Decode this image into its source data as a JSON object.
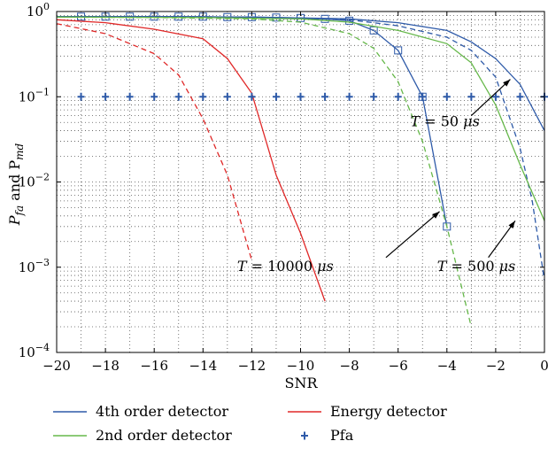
{
  "chart_data": {
    "type": "line",
    "title": "",
    "xlabel": "SNR",
    "ylabel": {
      "main": "P",
      "sub1": "fa",
      "mid": " and P",
      "sub2": "md"
    },
    "xlim": [
      -20,
      0
    ],
    "ylim": [
      0.0001,
      1
    ],
    "yscale": "log",
    "grid": true,
    "legend_position": "bottom",
    "x_ticks": [
      -20,
      -18,
      -16,
      -14,
      -12,
      -10,
      -8,
      -6,
      -4,
      -2,
      0
    ],
    "x_tick_labels": [
      "−20",
      "−18",
      "−16",
      "−14",
      "−12",
      "−10",
      "−8",
      "−6",
      "−4",
      "−2",
      "0"
    ],
    "y_ticks": [
      {
        "value": 1,
        "base": "10",
        "exp": "0"
      },
      {
        "value": 0.1,
        "base": "10",
        "exp": "−1"
      },
      {
        "value": 0.01,
        "base": "10",
        "exp": "−2"
      },
      {
        "value": 0.001,
        "base": "10",
        "exp": "−3"
      },
      {
        "value": 0.0001,
        "base": "10",
        "exp": "−4"
      }
    ],
    "series": [
      {
        "detector": "4th",
        "T": "50",
        "style": "solid",
        "color": "#2e5aa8",
        "points": [
          [
            -20,
            0.87
          ],
          [
            -16,
            0.87
          ],
          [
            -12,
            0.86
          ],
          [
            -8,
            0.82
          ],
          [
            -6,
            0.74
          ],
          [
            -4,
            0.6
          ],
          [
            -3,
            0.44
          ],
          [
            -2,
            0.28
          ],
          [
            -1,
            0.14
          ],
          [
            0,
            0.04
          ]
        ]
      },
      {
        "detector": "4th",
        "T": "500",
        "style": "dashed",
        "color": "#2e5aa8",
        "points": [
          [
            -20,
            0.87
          ],
          [
            -16,
            0.87
          ],
          [
            -12,
            0.86
          ],
          [
            -8,
            0.8
          ],
          [
            -6,
            0.68
          ],
          [
            -4,
            0.5
          ],
          [
            -3,
            0.35
          ],
          [
            -2,
            0.17
          ],
          [
            -1,
            0.025
          ],
          [
            -0.5,
            0.006
          ],
          [
            0,
            0.0007
          ]
        ]
      },
      {
        "detector": "4th",
        "T": "10000",
        "style": "solid-square",
        "color": "#2e5aa8",
        "points": [
          [
            -20,
            0.87
          ],
          [
            -19,
            0.87
          ],
          [
            -18,
            0.87
          ],
          [
            -17,
            0.87
          ],
          [
            -16,
            0.87
          ],
          [
            -15,
            0.87
          ],
          [
            -14,
            0.87
          ],
          [
            -13,
            0.86
          ],
          [
            -12,
            0.86
          ],
          [
            -11,
            0.85
          ],
          [
            -10,
            0.84
          ],
          [
            -9,
            0.82
          ],
          [
            -8,
            0.78
          ],
          [
            -7,
            0.6
          ],
          [
            -6,
            0.35
          ],
          [
            -5,
            0.1
          ],
          [
            -4,
            0.003
          ]
        ]
      },
      {
        "detector": "2nd",
        "T": "50",
        "style": "solid",
        "color": "#66b84a",
        "points": [
          [
            -20,
            0.86
          ],
          [
            -14,
            0.85
          ],
          [
            -10,
            0.82
          ],
          [
            -8,
            0.75
          ],
          [
            -6,
            0.6
          ],
          [
            -4,
            0.42
          ],
          [
            -3,
            0.25
          ],
          [
            -2,
            0.08
          ],
          [
            -1,
            0.016
          ],
          [
            0,
            0.0035
          ]
        ]
      },
      {
        "detector": "2nd",
        "T": "10000",
        "style": "dashed",
        "color": "#66b84a",
        "points": [
          [
            -20,
            0.86
          ],
          [
            -16,
            0.85
          ],
          [
            -12,
            0.82
          ],
          [
            -10,
            0.75
          ],
          [
            -8,
            0.55
          ],
          [
            -7,
            0.37
          ],
          [
            -6,
            0.15
          ],
          [
            -5,
            0.03
          ],
          [
            -4,
            0.003
          ],
          [
            -3,
            0.0002
          ]
        ]
      },
      {
        "detector": "energy",
        "T": "50",
        "style": "solid",
        "color": "#e02828",
        "points": [
          [
            -20,
            0.8
          ],
          [
            -18,
            0.74
          ],
          [
            -16,
            0.62
          ],
          [
            -14,
            0.48
          ],
          [
            -13,
            0.28
          ],
          [
            -12,
            0.11
          ],
          [
            -11,
            0.012
          ],
          [
            -10,
            0.0025
          ],
          [
            -9,
            0.0004
          ]
        ]
      },
      {
        "detector": "energy",
        "T": "500",
        "style": "dashed",
        "color": "#e02828",
        "points": [
          [
            -20,
            0.72
          ],
          [
            -18,
            0.55
          ],
          [
            -16,
            0.32
          ],
          [
            -15,
            0.18
          ],
          [
            -14,
            0.055
          ],
          [
            -13,
            0.012
          ],
          [
            -12,
            0.0012
          ]
        ]
      },
      {
        "detector": "pfa",
        "style": "plus",
        "color": "#2e5aa8",
        "points": [
          [
            -19,
            0.1
          ],
          [
            -18,
            0.1
          ],
          [
            -17,
            0.1
          ],
          [
            -16,
            0.1
          ],
          [
            -15,
            0.1
          ],
          [
            -14,
            0.1
          ],
          [
            -13,
            0.1
          ],
          [
            -12,
            0.1
          ],
          [
            -11,
            0.1
          ],
          [
            -10,
            0.1
          ],
          [
            -9,
            0.1
          ],
          [
            -8,
            0.1
          ],
          [
            -7,
            0.1
          ],
          [
            -6,
            0.1
          ],
          [
            -5,
            0.1
          ],
          [
            -4,
            0.1
          ],
          [
            -3,
            0.1
          ],
          [
            -2,
            0.1
          ],
          [
            -1,
            0.1
          ],
          [
            0,
            0.1
          ]
        ]
      }
    ],
    "annotations": [
      {
        "text_prefix": "T = ",
        "value": "50",
        "unit": " μs",
        "text_at": [
          -5.5,
          0.045
        ],
        "arrow_from": [
          -3,
          0.06
        ],
        "arrow_to": [
          -1.4,
          0.16
        ]
      },
      {
        "text_prefix": "T = ",
        "value": "10000",
        "unit": " μs",
        "text_at": [
          -12.6,
          0.0009
        ],
        "arrow_from": [
          -6.5,
          0.0013
        ],
        "arrow_to": [
          -4.3,
          0.0045
        ]
      },
      {
        "text_prefix": "T = ",
        "value": "500",
        "unit": " μs",
        "text_at": [
          -4.4,
          0.0009
        ],
        "arrow_from": [
          -2.3,
          0.0013
        ],
        "arrow_to": [
          -1.2,
          0.0035
        ]
      }
    ],
    "legend": [
      {
        "label": "4th order detector",
        "color": "#2e5aa8",
        "marker": "line"
      },
      {
        "label": "Energy detector",
        "color": "#e02828",
        "marker": "line"
      },
      {
        "label": "2nd order detector",
        "color": "#66b84a",
        "marker": "line"
      },
      {
        "label": "Pfa",
        "color": "#2e5aa8",
        "marker": "plus"
      }
    ]
  }
}
